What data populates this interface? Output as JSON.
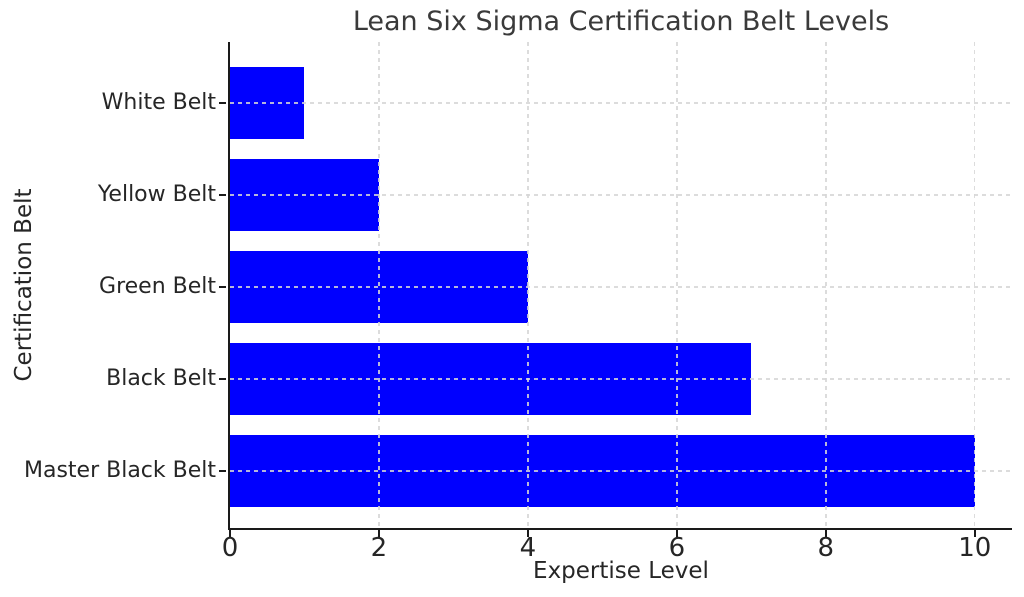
{
  "chart_data": {
    "type": "bar",
    "orientation": "horizontal",
    "title": "Lean Six Sigma Certification Belt Levels",
    "xlabel": "Expertise Level",
    "ylabel": "Certification Belt",
    "categories": [
      "White Belt",
      "Yellow Belt",
      "Green Belt",
      "Black Belt",
      "Master Black Belt"
    ],
    "values": [
      1,
      2,
      4,
      7,
      10
    ],
    "xticks": [
      0,
      2,
      4,
      6,
      8,
      10
    ],
    "xlim": [
      0,
      10.5
    ],
    "bar_color": "#0000ff",
    "grid": true,
    "grid_style": "dashed",
    "grid_color": "#d6d6d6",
    "spine_color": "#1a1a1a",
    "text_color": "#262626",
    "legend_position": "none"
  }
}
